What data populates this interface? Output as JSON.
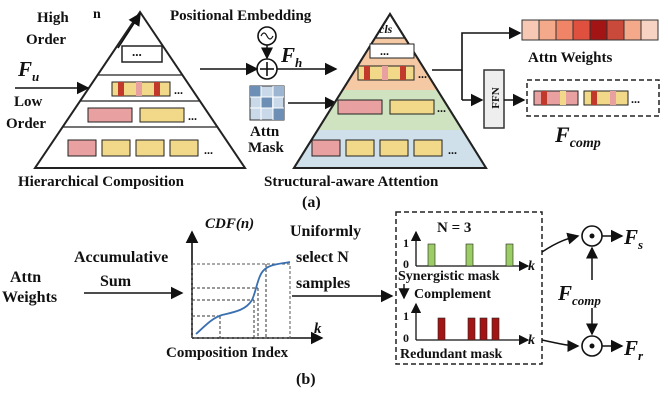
{
  "panel_a": {
    "high_order": "High",
    "high_order_2": "Order",
    "low_order": "Low",
    "low_order_2": "Order",
    "axis_n": "n",
    "dots": "...",
    "F_u": "F",
    "F_u_sub": "u",
    "positional_embedding": "Positional Embedding",
    "F_h": "F",
    "F_h_sub": "h",
    "attn_mask_1": "Attn",
    "attn_mask_2": "Mask",
    "cls": "cls",
    "ffn": "FFN",
    "attn_weights": "Attn Weights",
    "F_comp": "F",
    "F_comp_sub": "comp",
    "hierarchical_composition": "Hierarchical Composition",
    "structural_aware_attention": "Structural-aware Attention",
    "caption": "(a)"
  },
  "panel_b": {
    "attn_weights_1": "Attn",
    "attn_weights_2": "Weights",
    "accumulative": "Accumulative",
    "sum": "Sum",
    "cdf_label": "CDF(n)",
    "k_axis": "k",
    "composition_index": "Composition Index",
    "uniform_1": "Uniformly",
    "uniform_2": "select N",
    "uniform_3": "samples",
    "n_equals": "N = 3",
    "tick_1": "1",
    "tick_0": "0",
    "synergistic_mask": "Synergistic mask",
    "complement": "Complement",
    "redundant_mask": "Redundant mask",
    "F_comp": "F",
    "F_comp_sub": "comp",
    "F_s": "F",
    "F_s_sub": "s",
    "F_r": "F",
    "F_r_sub": "r",
    "caption": "(b)"
  },
  "colors": {
    "red": "#c0392b",
    "pink": "#e8a0a0",
    "yellow": "#f2d98a",
    "orange": "#f0b38a",
    "green_band": "#cfe3c0",
    "blue_band": "#cfe0ea",
    "orange_band": "#f4c9a4",
    "green_bar": "#9ccc65",
    "dark_red_bar": "#a31515",
    "curve": "#3a6fb0"
  },
  "attn_weight_colors": [
    "#f7c9b4",
    "#f4a98b",
    "#ef8566",
    "#e0503f",
    "#a31515",
    "#c94a3a",
    "#f4a98b",
    "#f7d3c3"
  ]
}
